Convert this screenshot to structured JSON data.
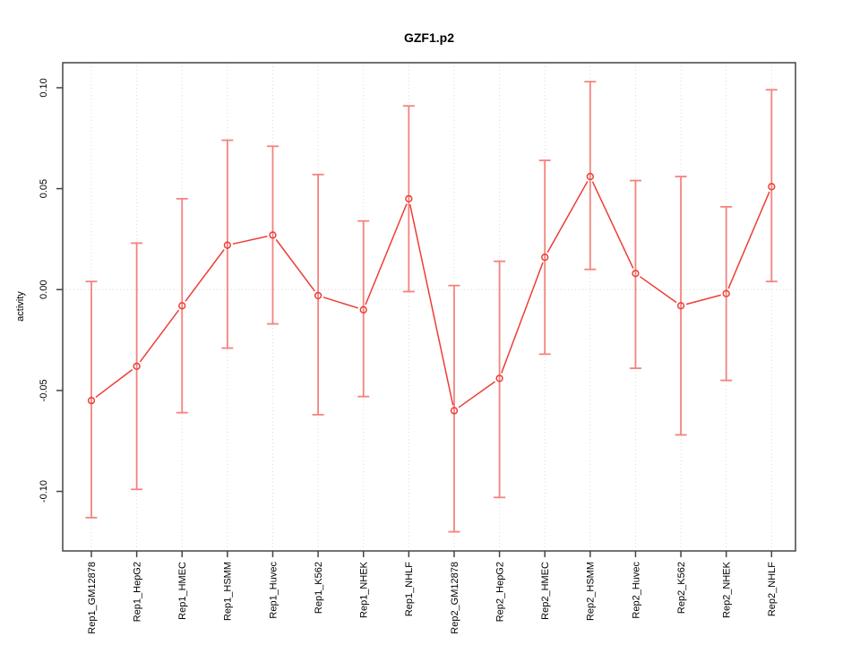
{
  "figure": {
    "title": "GZF1.p2"
  },
  "chart_data": {
    "type": "line",
    "title": "GZF1.p2",
    "xlabel": "",
    "ylabel": "activity",
    "legend": "none",
    "grid": "vertical dotted gridline at each category; dotted horizontal line at y=0",
    "marker": "open-circle",
    "error_bars": true,
    "categories": [
      "Rep1_GM12878",
      "Rep1_HepG2",
      "Rep1_HMEC",
      "Rep1_HSMM",
      "Rep1_Huvec",
      "Rep1_K562",
      "Rep1_NHEK",
      "Rep1_NHLF",
      "Rep2_GM12878",
      "Rep2_HepG2",
      "Rep2_HMEC",
      "Rep2_HSMM",
      "Rep2_Huvec",
      "Rep2_K562",
      "Rep2_NHEK",
      "Rep2_NHLF"
    ],
    "series": [
      {
        "name": "activity",
        "values": [
          -0.055,
          -0.038,
          -0.008,
          0.022,
          0.027,
          -0.003,
          -0.01,
          0.045,
          -0.06,
          -0.044,
          0.016,
          0.056,
          0.008,
          -0.008,
          -0.002,
          0.051
        ],
        "err_low": [
          -0.113,
          -0.099,
          -0.061,
          -0.029,
          -0.017,
          -0.062,
          -0.053,
          -0.001,
          -0.12,
          -0.103,
          -0.032,
          0.01,
          -0.039,
          -0.072,
          -0.045,
          0.004
        ],
        "err_high": [
          0.004,
          0.023,
          0.045,
          0.074,
          0.071,
          0.057,
          0.034,
          0.091,
          0.002,
          0.014,
          0.064,
          0.103,
          0.054,
          0.056,
          0.041,
          0.099
        ]
      }
    ],
    "ylim": [
      -0.1295,
      0.1124
    ],
    "yticks": [
      -0.1,
      -0.05,
      0.0,
      0.05,
      0.1
    ],
    "ytick_labels": [
      "-0.10",
      "-0.05",
      "0.00",
      "0.05",
      "0.10"
    ],
    "colors": {
      "line": "#ee3d36",
      "marker": "#ee3d36",
      "error_bar": "#f3837e",
      "gridline": "#dcdcdc",
      "zero_line": "#d9d9d9",
      "axis": "#444444"
    }
  }
}
